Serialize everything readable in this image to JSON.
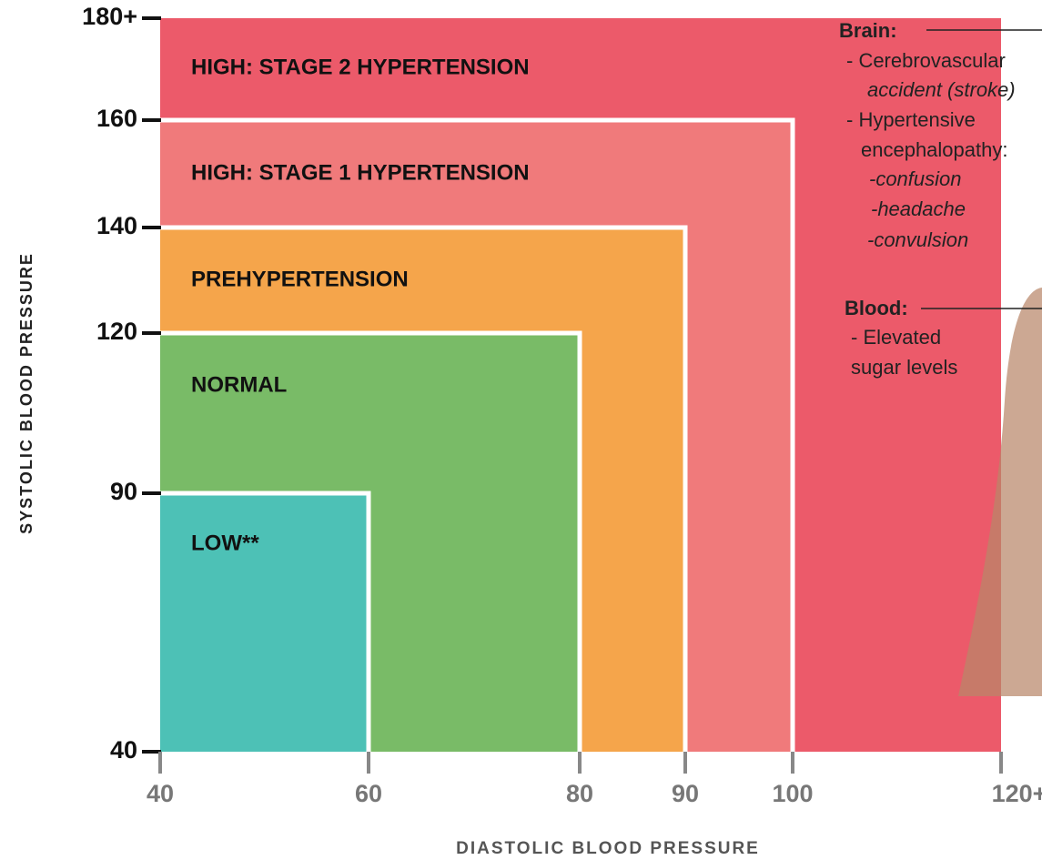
{
  "chart_data": {
    "type": "zone",
    "xlabel": "DIASTOLIC BLOOD PRESSURE",
    "ylabel": "SYSTOLIC BLOOD PRESSURE",
    "xticks": [
      40,
      60,
      80,
      90,
      100,
      {
        "value": 120,
        "label": "120+"
      }
    ],
    "yticks": [
      40,
      90,
      120,
      140,
      160,
      {
        "value": 180,
        "label": "180+"
      }
    ],
    "xlim": [
      40,
      120
    ],
    "ylim": [
      40,
      180
    ],
    "zones": [
      {
        "name": "HIGH: STAGE 2 HYPERTENSION",
        "diastolic": 120,
        "systolic": 180,
        "color": "#ec5a6a"
      },
      {
        "name": "HIGH: STAGE 1 HYPERTENSION",
        "diastolic": 100,
        "systolic": 160,
        "color": "#f07a7b"
      },
      {
        "name": "PREHYPERTENSION",
        "diastolic": 90,
        "systolic": 140,
        "color": "#f5a54b"
      },
      {
        "name": "NORMAL",
        "diastolic": 80,
        "systolic": 120,
        "color": "#79bb67"
      },
      {
        "name": "LOW**",
        "diastolic": 60,
        "systolic": 90,
        "color": "#4dc1b6"
      }
    ],
    "annotations": [
      {
        "heading": "Brain:",
        "lines": [
          "- Cerebrovascular",
          "accident  (stroke)",
          "- Hypertensive",
          "encephalopathy:",
          "-confusion",
          "-headache",
          "-convulsion"
        ]
      },
      {
        "heading": "Blood:",
        "lines": [
          "- Elevated",
          "sugar levels"
        ]
      }
    ]
  }
}
